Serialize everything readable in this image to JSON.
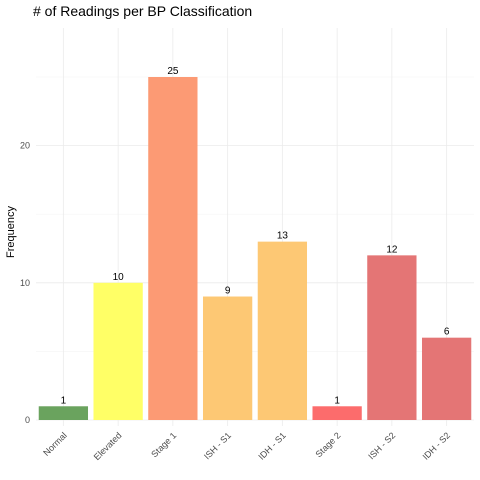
{
  "chart_data": {
    "type": "bar",
    "title": "# of Readings per BP Classification",
    "xlabel": "",
    "ylabel": "Frequency",
    "categories": [
      "Normal",
      "Elevated",
      "Stage 1",
      "ISH - S1",
      "IDH - S1",
      "Stage 2",
      "ISH - S2",
      "IDH - S2"
    ],
    "values": [
      1,
      10,
      25,
      9,
      13,
      1,
      12,
      6
    ],
    "colors": [
      "#6aa35e",
      "#ffff66",
      "#fc9a74",
      "#fdc874",
      "#fdc874",
      "#fc6c6c",
      "#e47575",
      "#e47575"
    ],
    "yticks": [
      0,
      10,
      20
    ],
    "ylim": [
      0,
      25
    ],
    "grid": true,
    "legend": "none"
  }
}
